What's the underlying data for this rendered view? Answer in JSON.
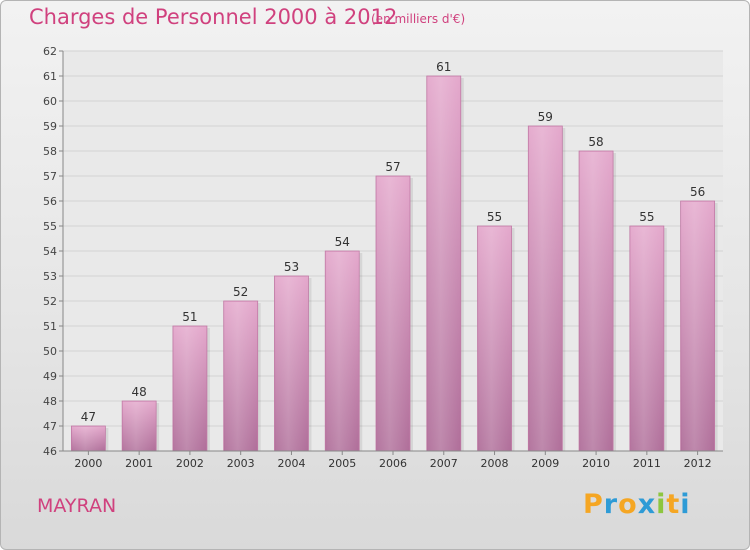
{
  "chart_data": {
    "type": "bar",
    "title": "Charges de Personnel 2000 à 2012",
    "unit_note": "(en milliers d'€)",
    "categories": [
      "2000",
      "2001",
      "2002",
      "2003",
      "2004",
      "2005",
      "2006",
      "2007",
      "2008",
      "2009",
      "2010",
      "2011",
      "2012"
    ],
    "values": [
      47,
      48,
      51,
      52,
      53,
      54,
      57,
      61,
      55,
      59,
      58,
      55,
      56
    ],
    "ylim": [
      46,
      62
    ],
    "ytick_step": 1,
    "grid": true,
    "bar_color": "#d58fb8",
    "label_color": "#333333"
  },
  "footer": {
    "location": "MAYRAN"
  },
  "logo": {
    "letters": [
      "P",
      "r",
      "o",
      "x",
      "i",
      "t",
      "i"
    ],
    "colors": [
      "#f5a623",
      "#2e9bd6",
      "#f5a623",
      "#2e9bd6",
      "#8dc63f",
      "#f5a623",
      "#2e9bd6"
    ]
  }
}
